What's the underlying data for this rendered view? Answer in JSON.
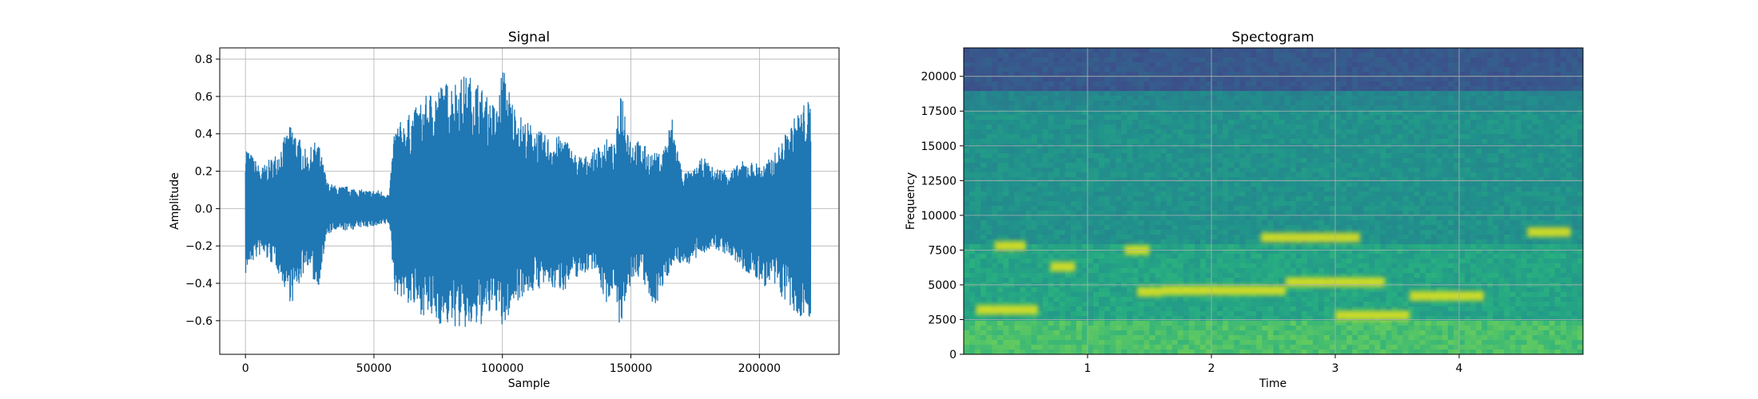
{
  "chart_data": [
    {
      "type": "line",
      "title": "Signal",
      "xlabel": "Sample",
      "ylabel": "Amplitude",
      "xlim": [
        -10000,
        231000
      ],
      "ylim": [
        -0.78,
        0.86
      ],
      "grid": true,
      "color": "#1f77b4",
      "xticks": [
        0,
        50000,
        100000,
        150000,
        200000
      ],
      "xtick_labels": [
        "0",
        "50000",
        "100000",
        "150000",
        "200000"
      ],
      "yticks": [
        -0.6,
        -0.4,
        -0.2,
        0.0,
        0.2,
        0.4,
        0.6,
        0.8
      ],
      "ytick_labels": [
        "−0.6",
        "−0.4",
        "−0.2",
        "0.0",
        "0.2",
        "0.4",
        "0.6",
        "0.8"
      ],
      "envelope": {
        "x": [
          0,
          2000,
          6000,
          12000,
          18000,
          24000,
          28000,
          32000,
          36000,
          40000,
          46000,
          52000,
          56000,
          58000,
          62000,
          66000,
          70000,
          74000,
          78000,
          82000,
          86000,
          90000,
          94000,
          98000,
          100000,
          104000,
          108000,
          112000,
          116000,
          120000,
          124000,
          128000,
          132000,
          136000,
          140000,
          144000,
          146000,
          150000,
          154000,
          158000,
          162000,
          166000,
          170000,
          174000,
          178000,
          182000,
          186000,
          190000,
          194000,
          198000,
          202000,
          206000,
          210000,
          214000,
          218000,
          220000
        ],
        "upper": [
          0.36,
          0.3,
          0.22,
          0.3,
          0.46,
          0.3,
          0.38,
          0.14,
          0.12,
          0.12,
          0.1,
          0.1,
          0.08,
          0.45,
          0.48,
          0.54,
          0.6,
          0.66,
          0.68,
          0.7,
          0.72,
          0.7,
          0.6,
          0.55,
          0.78,
          0.58,
          0.48,
          0.45,
          0.4,
          0.38,
          0.4,
          0.3,
          0.28,
          0.32,
          0.38,
          0.34,
          0.69,
          0.38,
          0.36,
          0.3,
          0.3,
          0.5,
          0.2,
          0.2,
          0.28,
          0.22,
          0.22,
          0.22,
          0.26,
          0.25,
          0.24,
          0.3,
          0.4,
          0.5,
          0.58,
          0.58
        ],
        "lower": [
          -0.36,
          -0.3,
          -0.25,
          -0.32,
          -0.52,
          -0.3,
          -0.45,
          -0.14,
          -0.12,
          -0.12,
          -0.1,
          -0.1,
          -0.08,
          -0.45,
          -0.5,
          -0.55,
          -0.58,
          -0.62,
          -0.63,
          -0.64,
          -0.66,
          -0.65,
          -0.6,
          -0.55,
          -0.68,
          -0.52,
          -0.47,
          -0.45,
          -0.42,
          -0.44,
          -0.44,
          -0.38,
          -0.35,
          -0.32,
          -0.52,
          -0.42,
          -0.69,
          -0.4,
          -0.36,
          -0.55,
          -0.46,
          -0.3,
          -0.3,
          -0.3,
          -0.24,
          -0.22,
          -0.24,
          -0.28,
          -0.34,
          -0.38,
          -0.42,
          -0.44,
          -0.5,
          -0.6,
          -0.58,
          -0.58
        ]
      }
    },
    {
      "type": "heatmap",
      "title": "Spectogram",
      "xlabel": "Time",
      "ylabel": "Frequency",
      "xlim": [
        0,
        5.0
      ],
      "ylim": [
        0,
        22050
      ],
      "grid": true,
      "xticks": [
        1,
        2,
        3,
        4
      ],
      "xtick_labels": [
        "1",
        "2",
        "3",
        "4"
      ],
      "yticks": [
        0,
        2500,
        5000,
        7500,
        10000,
        12500,
        15000,
        17500,
        20000
      ],
      "ytick_labels": [
        "0",
        "2500",
        "5000",
        "7500",
        "10000",
        "12500",
        "15000",
        "17500",
        "20000"
      ],
      "colors": {
        "top_band": "#2f6b8e",
        "mid_band": "#3fb56b",
        "low_band": "#7fcd3f",
        "highlight": "#e7e419"
      },
      "bands": [
        {
          "f0": 0,
          "f1": 2500,
          "level": 0.72
        },
        {
          "f0": 2500,
          "f1": 8000,
          "level": 0.62
        },
        {
          "f0": 8000,
          "f1": 17500,
          "level": 0.55
        },
        {
          "f0": 17500,
          "f1": 19000,
          "level": 0.5
        },
        {
          "f0": 19000,
          "f1": 22050,
          "level": 0.28
        }
      ],
      "highlights": [
        {
          "t0": 0.25,
          "t1": 0.5,
          "f": 7800
        },
        {
          "t0": 0.7,
          "t1": 0.9,
          "f": 6300
        },
        {
          "t0": 1.3,
          "t1": 1.5,
          "f": 7500
        },
        {
          "t0": 1.4,
          "t1": 1.6,
          "f": 4500
        },
        {
          "t0": 1.6,
          "t1": 2.6,
          "f": 4600
        },
        {
          "t0": 2.4,
          "t1": 3.2,
          "f": 8400
        },
        {
          "t0": 2.6,
          "t1": 3.4,
          "f": 5200
        },
        {
          "t0": 3.6,
          "t1": 4.2,
          "f": 4200
        },
        {
          "t0": 4.55,
          "t1": 4.9,
          "f": 8800
        },
        {
          "t0": 0.1,
          "t1": 0.6,
          "f": 3200
        },
        {
          "t0": 3.0,
          "t1": 3.6,
          "f": 2800
        }
      ]
    }
  ]
}
